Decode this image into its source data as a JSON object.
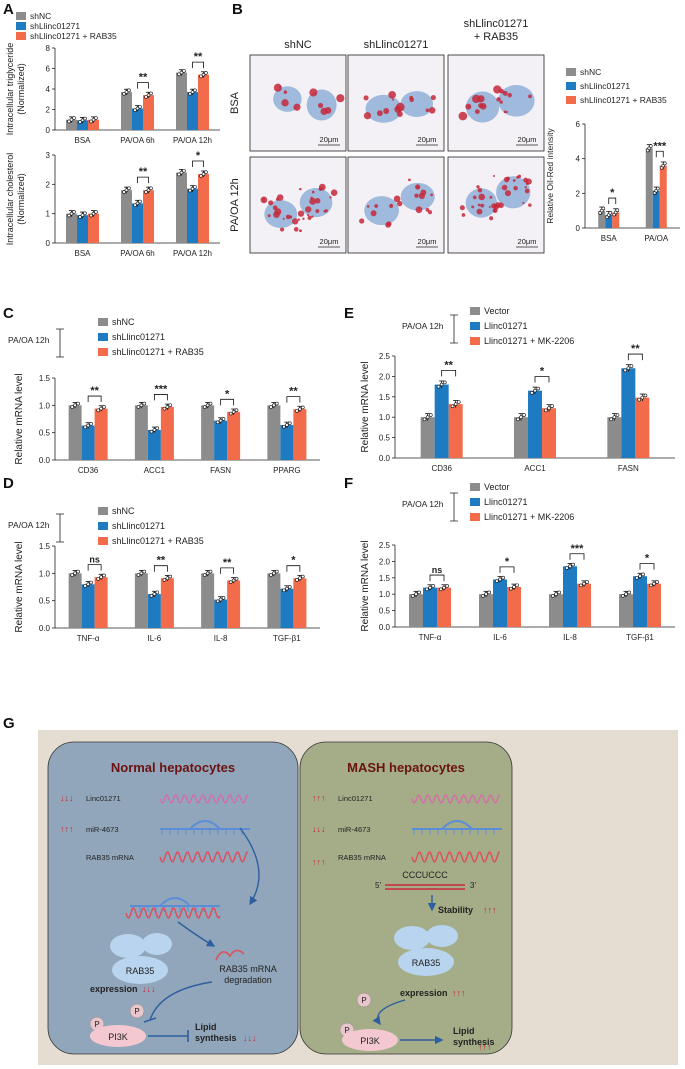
{
  "panel_letters": [
    "A",
    "B",
    "C",
    "D",
    "E",
    "F",
    "G"
  ],
  "colors": {
    "grey": "#8c8c8c",
    "blue": "#1f7bc1",
    "orange": "#f26b4a",
    "red_mark": "#c6283a",
    "dark_red": "#6b1212"
  },
  "chart_data": [
    {
      "id": "A_top",
      "type": "bar",
      "ylabel": [
        "Intracellular triglyceride",
        "(Normalized)"
      ],
      "categories": [
        "BSA",
        "PA/OA 6h",
        "PA/OA 12h"
      ],
      "ylim": [
        0,
        8
      ],
      "yticks": [
        0,
        2,
        4,
        6,
        8
      ],
      "legend": [
        "shNC",
        "shLlinc01271",
        "shLlinc01271 + RAB35"
      ],
      "series": [
        {
          "name": "shNC",
          "values": [
            1.0,
            3.7,
            5.6
          ]
        },
        {
          "name": "shLlinc01271",
          "values": [
            0.95,
            2.1,
            3.7
          ]
        },
        {
          "name": "shLlinc01271 + RAB35",
          "values": [
            1.0,
            3.4,
            5.4
          ]
        }
      ],
      "sig": [
        {
          "cat": 1,
          "from": 1,
          "to": 2,
          "label": "**"
        },
        {
          "cat": 2,
          "from": 1,
          "to": 2,
          "label": "**"
        }
      ]
    },
    {
      "id": "A_bot",
      "type": "bar",
      "ylabel": [
        "Intracellular cholesterol",
        "(Normalized)"
      ],
      "categories": [
        "BSA",
        "PA/OA 6h",
        "PA/OA 12h"
      ],
      "ylim": [
        0,
        3
      ],
      "yticks": [
        0,
        1,
        2,
        3
      ],
      "series": [
        {
          "name": "shNC",
          "values": [
            1.0,
            1.8,
            2.4
          ]
        },
        {
          "name": "shLlinc01271",
          "values": [
            0.95,
            1.35,
            1.85
          ]
        },
        {
          "name": "shLlinc01271 + RAB35",
          "values": [
            1.0,
            1.8,
            2.35
          ]
        }
      ],
      "sig": [
        {
          "cat": 1,
          "from": 1,
          "to": 2,
          "label": "**"
        },
        {
          "cat": 2,
          "from": 1,
          "to": 2,
          "label": "*"
        }
      ]
    },
    {
      "id": "B_chart",
      "type": "bar",
      "ylabel": [
        "Relative Oil-Red intensity"
      ],
      "categories": [
        "BSA",
        "PA/OA"
      ],
      "ylim": [
        0,
        6
      ],
      "yticks": [
        0,
        2,
        4,
        6
      ],
      "legend": [
        "shNC",
        "shLlinc01271",
        "shLlinc01271 + RAB35"
      ],
      "series": [
        {
          "name": "shNC",
          "values": [
            1.0,
            4.6
          ]
        },
        {
          "name": "shLlinc01271",
          "values": [
            0.75,
            2.15
          ]
        },
        {
          "name": "shLlinc01271 + RAB35",
          "values": [
            0.9,
            3.6
          ]
        }
      ],
      "sig": [
        {
          "cat": 0,
          "from": 1,
          "to": 2,
          "label": "*"
        },
        {
          "cat": 1,
          "from": 1,
          "to": 2,
          "label": "***"
        }
      ]
    },
    {
      "id": "C",
      "type": "bar",
      "ylabel": [
        "Relative mRNA level"
      ],
      "categories": [
        "CD36",
        "ACC1",
        "FASN",
        "PPARG"
      ],
      "ylim": [
        0,
        1.5
      ],
      "yticks": [
        "0.0",
        "0.5",
        "1.0",
        "1.5"
      ],
      "legend": [
        "shNC",
        "shLlinc01271",
        "shLlinc01271 + RAB35"
      ],
      "condition": "PA/OA 12h",
      "series": [
        {
          "name": "shNC",
          "values": [
            1.0,
            1.0,
            1.0,
            1.0
          ]
        },
        {
          "name": "shLlinc01271",
          "values": [
            0.63,
            0.55,
            0.72,
            0.64
          ]
        },
        {
          "name": "shLlinc01271 + RAB35",
          "values": [
            0.94,
            0.97,
            0.88,
            0.93
          ]
        }
      ],
      "sig": [
        {
          "cat": 0,
          "from": 1,
          "to": 2,
          "label": "**"
        },
        {
          "cat": 1,
          "from": 1,
          "to": 2,
          "label": "***"
        },
        {
          "cat": 2,
          "from": 1,
          "to": 2,
          "label": "*"
        },
        {
          "cat": 3,
          "from": 1,
          "to": 2,
          "label": "**"
        }
      ]
    },
    {
      "id": "D",
      "type": "bar",
      "ylabel": [
        "Relative mRNA level"
      ],
      "categories": [
        "TNF-α",
        "IL-6",
        "IL-8",
        "TGF-β1"
      ],
      "ylim": [
        0,
        1.5
      ],
      "yticks": [
        "0.0",
        "0.5",
        "1.0",
        "1.5"
      ],
      "legend": [
        "shNC",
        "shLlinc01271",
        "shLlinc01271 + RAB35"
      ],
      "condition": "PA/OA 12h",
      "series": [
        {
          "name": "shNC",
          "values": [
            1.0,
            1.0,
            1.0,
            1.0
          ]
        },
        {
          "name": "shLlinc01271",
          "values": [
            0.8,
            0.62,
            0.52,
            0.72
          ]
        },
        {
          "name": "shLlinc01271 + RAB35",
          "values": [
            0.93,
            0.91,
            0.87,
            0.91
          ]
        }
      ],
      "sig": [
        {
          "cat": 0,
          "from": 1,
          "to": 2,
          "label": "ns"
        },
        {
          "cat": 1,
          "from": 1,
          "to": 2,
          "label": "**"
        },
        {
          "cat": 2,
          "from": 1,
          "to": 2,
          "label": "**"
        },
        {
          "cat": 3,
          "from": 1,
          "to": 2,
          "label": "*"
        }
      ]
    },
    {
      "id": "E",
      "type": "bar",
      "ylabel": [
        "Relative mRNA level"
      ],
      "categories": [
        "CD36",
        "ACC1",
        "FASN"
      ],
      "ylim": [
        0,
        2.5
      ],
      "yticks": [
        "0.0",
        "0.5",
        "1.0",
        "1.5",
        "2.0",
        "2.5"
      ],
      "legend": [
        "Vector",
        "Llinc01271",
        "Llinc01271 + MK-2206"
      ],
      "condition": "PA/OA 12h",
      "series": [
        {
          "name": "Vector",
          "values": [
            1.0,
            1.0,
            1.0
          ]
        },
        {
          "name": "Llinc01271",
          "values": [
            1.8,
            1.65,
            2.2
          ]
        },
        {
          "name": "Llinc01271 + MK-2206",
          "values": [
            1.32,
            1.22,
            1.48
          ]
        }
      ],
      "sig": [
        {
          "cat": 0,
          "from": 1,
          "to": 2,
          "label": "**"
        },
        {
          "cat": 1,
          "from": 1,
          "to": 2,
          "label": "*"
        },
        {
          "cat": 2,
          "from": 1,
          "to": 2,
          "label": "**"
        }
      ]
    },
    {
      "id": "F",
      "type": "bar",
      "ylabel": [
        "Relative mRNA level"
      ],
      "categories": [
        "TNF-α",
        "IL-6",
        "IL-8",
        "TGF-β1"
      ],
      "ylim": [
        0,
        2.5
      ],
      "yticks": [
        "0.0",
        "0.5",
        "1.0",
        "1.5",
        "2.0",
        "2.5"
      ],
      "legend": [
        "Vector",
        "Llinc01271",
        "Llinc01271 + MK-2206"
      ],
      "condition": "PA/OA 12h",
      "series": [
        {
          "name": "Vector",
          "values": [
            1.0,
            1.0,
            1.0,
            1.0
          ]
        },
        {
          "name": "Llinc01271",
          "values": [
            1.2,
            1.45,
            1.85,
            1.55
          ]
        },
        {
          "name": "Llinc01271 + MK-2206",
          "values": [
            1.2,
            1.22,
            1.32,
            1.32
          ]
        }
      ],
      "sig": [
        {
          "cat": 0,
          "from": 1,
          "to": 2,
          "label": "ns"
        },
        {
          "cat": 1,
          "from": 1,
          "to": 2,
          "label": "*"
        },
        {
          "cat": 2,
          "from": 1,
          "to": 2,
          "label": "***"
        },
        {
          "cat": 3,
          "from": 1,
          "to": 2,
          "label": "*"
        }
      ]
    }
  ],
  "micro": {
    "columns": [
      "shNC",
      "shLlinc01271",
      "shLlinc01271\n+ RAB35"
    ],
    "rows": [
      "BSA",
      "PA/OA 12h"
    ],
    "scale": "20μm"
  },
  "diagram": {
    "normal": {
      "title": "Normal hepatocytes",
      "linc": "Linc01271",
      "mir": "miR-4673",
      "rab_mrna": "RAB35 mRNA",
      "linc_arrows": "↓↓↓",
      "mir_arrows": "↑↑↑",
      "rab35": "RAB35",
      "degradation": "RAB35 mRNA\ndegradation",
      "expression": "expression",
      "expression_arrows": "↓↓↓",
      "p": "P",
      "pi3k": "PI3K",
      "lipid": "Lipid\nsynthesis",
      "lipid_arrows": "↓↓↓"
    },
    "mash": {
      "title": "MASH hepatocytes",
      "linc": "Linc01271",
      "mir": "miR-4673",
      "rab_mrna": "RAB35 mRNA",
      "linc_arrows": "↑↑↑",
      "mir_arrows": "↓↓↓",
      "rab_arrows": "↑↑↑",
      "seq": "CCCUCCC",
      "five": "5'",
      "three": "3'",
      "stability": "Stability",
      "stability_arrows": "↑↑↑",
      "rab35": "RAB35",
      "expression": "expression",
      "expression_arrows": "↑↑↑",
      "p": "P",
      "pi3k": "PI3K",
      "lipid": "Lipid\nsynthesis",
      "lipid_arrows": "↑↑↑"
    }
  }
}
